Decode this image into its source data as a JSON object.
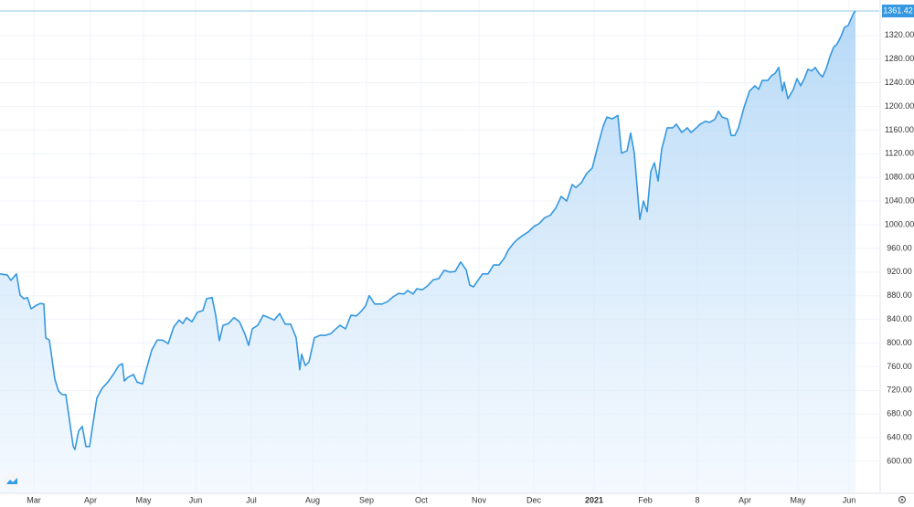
{
  "chart_data": {
    "type": "area",
    "x": [
      0,
      4,
      6,
      9,
      11,
      13,
      15,
      17,
      20,
      22,
      24,
      25,
      27,
      30,
      32,
      34,
      36,
      38,
      40,
      41,
      43,
      45,
      47,
      49,
      51,
      53,
      56,
      59,
      62,
      65,
      67,
      68,
      70,
      73,
      75,
      78,
      80,
      83,
      86,
      89,
      92,
      95,
      98,
      100,
      102,
      105,
      108,
      111,
      113,
      116,
      118,
      120,
      122,
      125,
      128,
      131,
      134,
      136,
      138,
      141,
      144,
      147,
      150,
      153,
      156,
      159,
      162,
      164,
      165,
      167,
      169,
      172,
      175,
      178,
      181,
      183,
      186,
      189,
      192,
      195,
      198,
      200,
      202,
      205,
      209,
      212,
      215,
      218,
      221,
      223,
      226,
      228,
      231,
      234,
      237,
      240,
      243,
      246,
      249,
      252,
      255,
      257,
      259,
      261,
      264,
      267,
      270,
      273,
      276,
      278,
      281,
      283,
      286,
      289,
      292,
      295,
      298,
      301,
      304,
      307,
      310,
      313,
      315,
      318,
      321,
      324,
      327,
      330,
      332,
      335,
      338,
      340,
      343,
      345,
      347,
      350,
      352,
      354,
      356,
      358,
      360,
      362,
      365,
      368,
      370,
      373,
      376,
      378,
      381,
      383,
      386,
      388,
      391,
      393,
      395,
      398,
      400,
      402,
      404,
      407,
      410,
      413,
      415,
      417,
      420,
      422,
      424,
      426,
      428,
      429,
      431,
      434,
      436,
      438,
      440,
      442,
      444,
      446,
      448,
      450,
      452,
      454,
      456,
      458,
      460,
      462,
      464,
      467,
      468
    ],
    "values": [
      917,
      915,
      906,
      917,
      881,
      875,
      877,
      858,
      864,
      867,
      866,
      809,
      805,
      739,
      719,
      713,
      713,
      670,
      626,
      620,
      651,
      659,
      625,
      625,
      666,
      707,
      724,
      734,
      747,
      762,
      765,
      736,
      742,
      747,
      734,
      731,
      755,
      788,
      805,
      805,
      799,
      827,
      839,
      833,
      843,
      836,
      852,
      855,
      875,
      877,
      847,
      804,
      830,
      833,
      843,
      836,
      815,
      796,
      824,
      830,
      847,
      843,
      839,
      850,
      832,
      832,
      809,
      755,
      781,
      762,
      768,
      809,
      813,
      813,
      816,
      822,
      830,
      824,
      847,
      846,
      855,
      863,
      880,
      866,
      866,
      870,
      878,
      884,
      883,
      889,
      883,
      892,
      890,
      897,
      907,
      909,
      923,
      920,
      921,
      937,
      924,
      898,
      895,
      904,
      917,
      917,
      932,
      932,
      944,
      957,
      969,
      975,
      982,
      988,
      997,
      1002,
      1012,
      1016,
      1028,
      1048,
      1040,
      1068,
      1063,
      1071,
      1087,
      1096,
      1133,
      1167,
      1182,
      1179,
      1185,
      1121,
      1125,
      1155,
      1121,
      1009,
      1040,
      1022,
      1090,
      1105,
      1074,
      1128,
      1164,
      1164,
      1170,
      1156,
      1164,
      1156,
      1164,
      1170,
      1175,
      1173,
      1178,
      1192,
      1182,
      1179,
      1151,
      1151,
      1164,
      1198,
      1226,
      1235,
      1229,
      1244,
      1244,
      1252,
      1256,
      1266,
      1226,
      1241,
      1213,
      1229,
      1247,
      1235,
      1247,
      1263,
      1260,
      1266,
      1256,
      1250,
      1264,
      1284,
      1300,
      1306,
      1318,
      1334,
      1337,
      1358,
      1361.42
    ],
    "color": "#3598e0",
    "xlim": [
      0,
      481
    ],
    "xticks": [
      {
        "value": 18.5,
        "label": "Mar"
      },
      {
        "value": 49.5,
        "label": "Apr"
      },
      {
        "value": 78.5,
        "label": "May"
      },
      {
        "value": 107,
        "label": "Jun"
      },
      {
        "value": 137.5,
        "label": "Jul"
      },
      {
        "value": 171,
        "label": "Aug"
      },
      {
        "value": 200.5,
        "label": "Sep"
      },
      {
        "value": 230.5,
        "label": "Oct"
      },
      {
        "value": 262,
        "label": "Nov"
      },
      {
        "value": 292,
        "label": "Dec"
      },
      {
        "value": 325,
        "label": "2021"
      },
      {
        "value": 353,
        "label": "Feb"
      },
      {
        "value": 381.5,
        "label": "8"
      },
      {
        "value": 407.5,
        "label": "Apr"
      },
      {
        "value": 436.5,
        "label": "May"
      },
      {
        "value": 464.5,
        "label": "Jun"
      }
    ],
    "ylim": [
      546,
      1380
    ],
    "yticks": [
      {
        "value": 600,
        "label": "600.00"
      },
      {
        "value": 640,
        "label": "640.00"
      },
      {
        "value": 680,
        "label": "680.00"
      },
      {
        "value": 720,
        "label": "720.00"
      },
      {
        "value": 760,
        "label": "760.00"
      },
      {
        "value": 800,
        "label": "800.00"
      },
      {
        "value": 840,
        "label": "840.00"
      },
      {
        "value": 880,
        "label": "880.00"
      },
      {
        "value": 920,
        "label": "920.00"
      },
      {
        "value": 960,
        "label": "960.00"
      },
      {
        "value": 1000,
        "label": "1000.00"
      },
      {
        "value": 1040,
        "label": "1040.00"
      },
      {
        "value": 1080,
        "label": "1080.00"
      },
      {
        "value": 1120,
        "label": "1120.00"
      },
      {
        "value": 1160,
        "label": "1160.00"
      },
      {
        "value": 1200,
        "label": "1200.00"
      },
      {
        "value": 1240,
        "label": "1240.00"
      },
      {
        "value": 1280,
        "label": "1280.00"
      },
      {
        "value": 1320,
        "label": "1320.00"
      }
    ],
    "grid": true
  }
}
